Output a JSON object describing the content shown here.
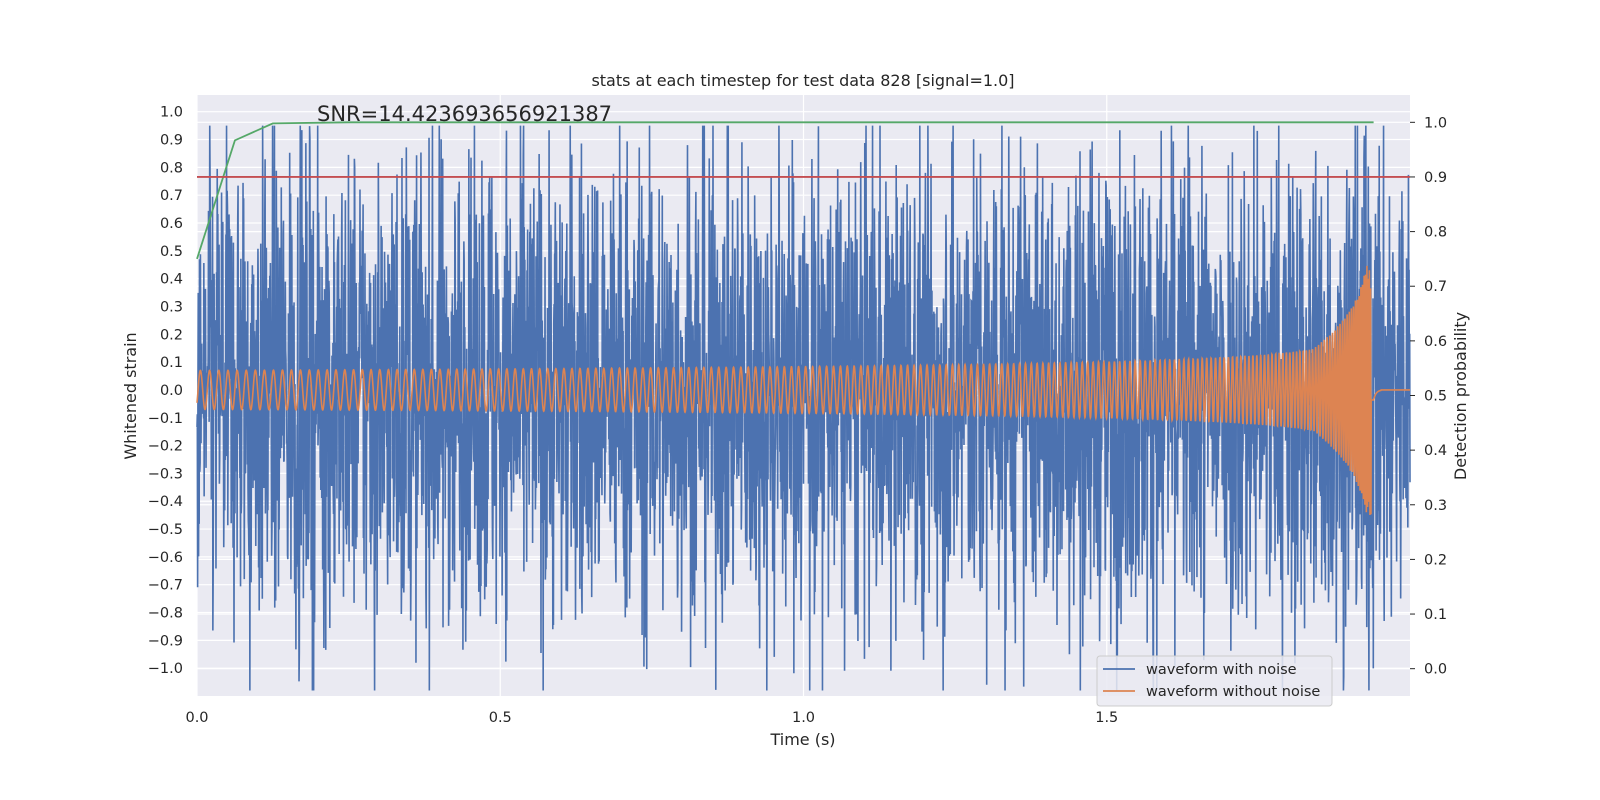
{
  "chart_data": {
    "type": "line",
    "title": "stats at each timestep for test data 828 [signal=1.0]",
    "annotation": "SNR=14.423693656921387",
    "xlabel": "Time (s)",
    "ylabel": "Whitened strain",
    "ylabel_right": "Detection probability",
    "xlim": [
      0.0,
      2.0
    ],
    "ylim": [
      -1.1,
      1.06
    ],
    "ylim_right": [
      -0.05,
      1.05
    ],
    "x_ticks": [
      "0.0",
      "0.5",
      "1.0",
      "1.5"
    ],
    "y_ticks": [
      "1.0",
      "0.9",
      "0.8",
      "0.7",
      "0.6",
      "0.5",
      "0.4",
      "0.3",
      "0.2",
      "0.1",
      "0.0",
      "−0.1",
      "−0.2",
      "−0.3",
      "−0.4",
      "−0.5",
      "−0.6",
      "−0.7",
      "−0.8",
      "−0.9",
      "−1.0"
    ],
    "y_ticks_right": [
      "1.0",
      "0.9",
      "0.8",
      "0.7",
      "0.6",
      "0.5",
      "0.4",
      "0.3",
      "0.2",
      "0.1",
      "0.0"
    ],
    "grid": true,
    "legend_position": "lower right",
    "series": [
      {
        "name": "waveform with noise",
        "axis": "left",
        "color": "#4c72b0",
        "description": "noisy whitened strain, amplitude roughly ±0.9",
        "x_range": [
          0.0,
          2.0
        ]
      },
      {
        "name": "waveform without noise",
        "axis": "left",
        "color": "#dd8452",
        "description": "chirp signal, amplitude ~0.07 growing to ~0.45 near merger at ~1.94 s",
        "x_range": [
          0.0,
          2.0
        ],
        "amplitude_start": 0.07,
        "peak_time": 1.94,
        "peak_amplitude": 0.45
      },
      {
        "axis": "right",
        "color": "#55a868",
        "x": [
          0.0,
          0.0625,
          0.125,
          0.25,
          0.5,
          1.0,
          1.5,
          1.94
        ],
        "values": [
          0.75,
          0.967,
          0.998,
          1.0,
          1.0,
          1.0,
          1.0,
          1.0
        ]
      },
      {
        "axis": "right",
        "color": "#c44e52",
        "x": [
          0.0,
          2.0
        ],
        "values": [
          0.9,
          0.9
        ]
      }
    ]
  }
}
